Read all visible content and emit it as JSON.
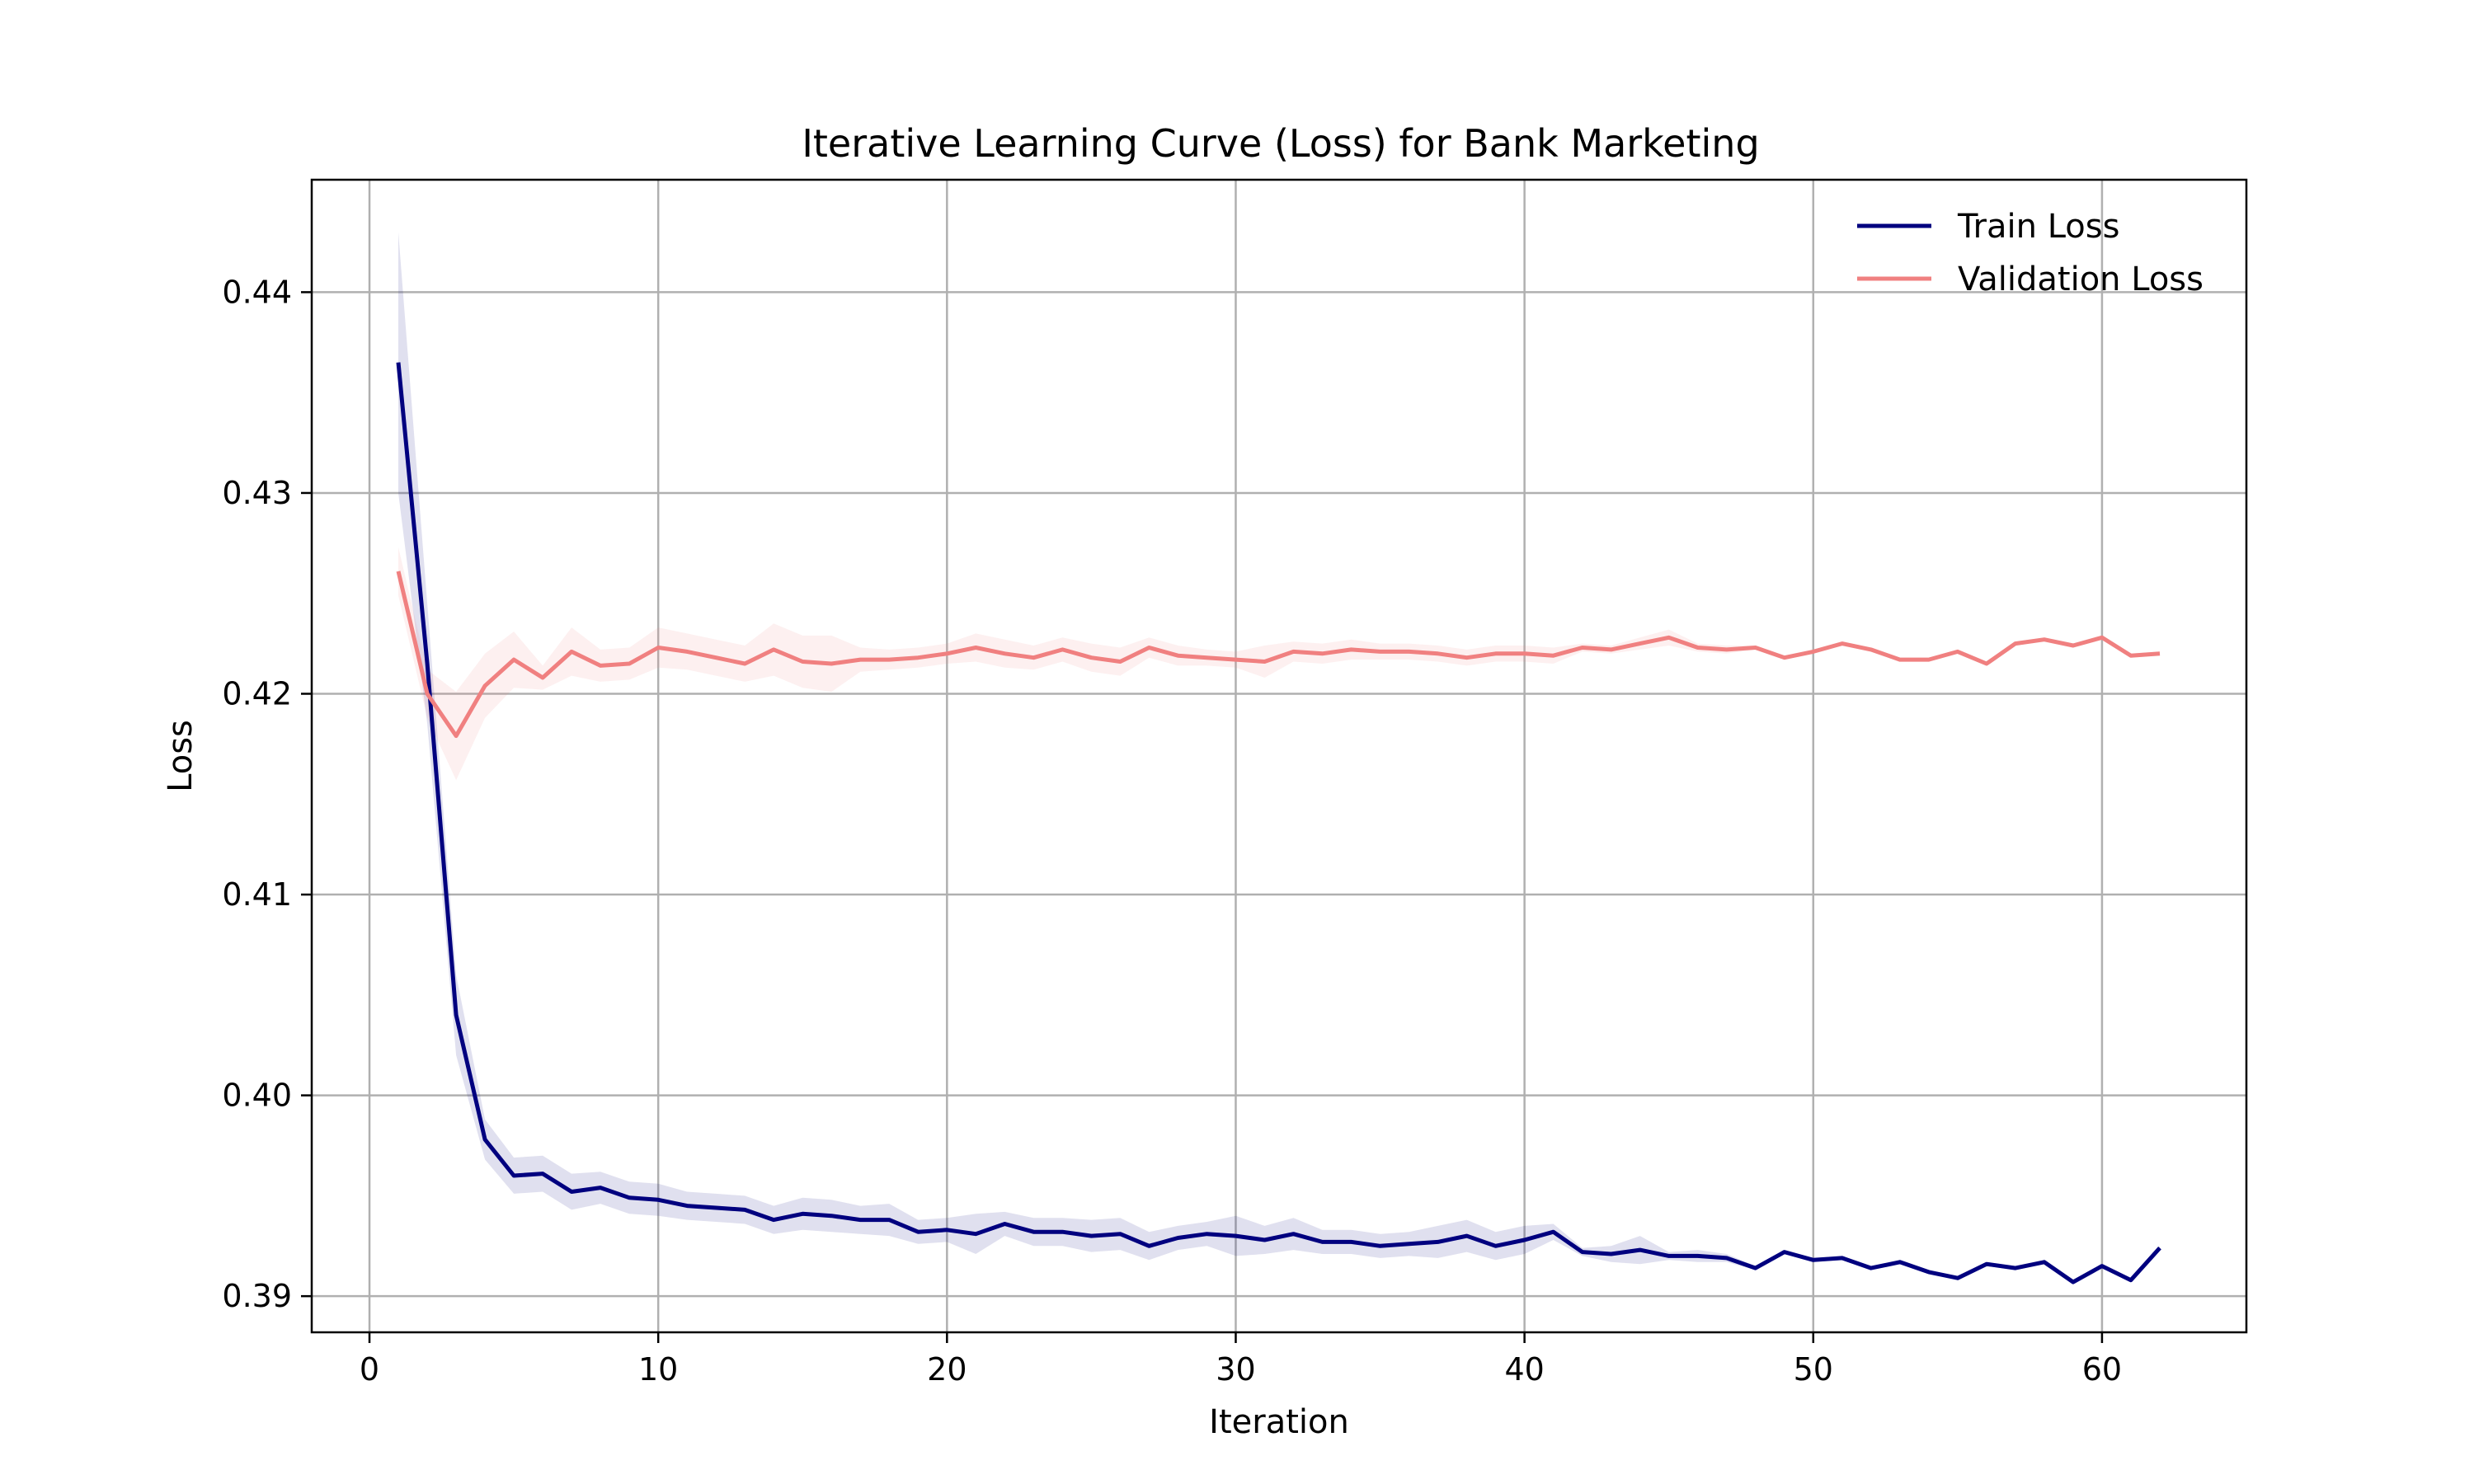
{
  "chart_data": {
    "type": "line",
    "title": "Iterative Learning Curve (Loss) for Bank Marketing",
    "xlabel": "Iteration",
    "ylabel": "Loss",
    "xlim": [
      -2,
      65
    ],
    "ylim": [
      0.3882,
      0.4456
    ],
    "xticks": [
      0,
      10,
      20,
      30,
      40,
      50,
      60
    ],
    "yticks": [
      0.39,
      0.4,
      0.41,
      0.42,
      0.43,
      0.44
    ],
    "ytick_labels": [
      "0.39",
      "0.40",
      "0.41",
      "0.42",
      "0.43",
      "0.44"
    ],
    "grid": true,
    "legend_position": "top-right",
    "x": [
      1,
      2,
      3,
      4,
      5,
      6,
      7,
      8,
      9,
      10,
      11,
      12,
      13,
      14,
      15,
      16,
      17,
      18,
      19,
      20,
      21,
      22,
      23,
      24,
      25,
      26,
      27,
      28,
      29,
      30,
      31,
      32,
      33,
      34,
      35,
      36,
      37,
      38,
      39,
      40,
      41,
      42,
      43,
      44,
      45,
      46,
      47,
      48,
      49,
      50,
      51,
      52,
      53,
      54,
      55,
      56,
      57,
      58,
      59,
      60,
      61,
      62
    ],
    "series": [
      {
        "name": "Train Loss",
        "color": "#00007f",
        "values": [
          0.4365,
          0.4215,
          0.404,
          0.3978,
          0.396,
          0.3961,
          0.3952,
          0.3954,
          0.3949,
          0.3948,
          0.3945,
          0.3944,
          0.3943,
          0.3938,
          0.3941,
          0.394,
          0.3938,
          0.3938,
          0.3932,
          0.3933,
          0.3931,
          0.3936,
          0.3932,
          0.3932,
          0.393,
          0.3931,
          0.3925,
          0.3929,
          0.3931,
          0.393,
          0.3928,
          0.3931,
          0.3927,
          0.3927,
          0.3925,
          0.3926,
          0.3927,
          0.393,
          0.3925,
          0.3928,
          0.3932,
          0.3922,
          0.3921,
          0.3923,
          0.392,
          0.392,
          0.3919,
          0.3914,
          0.3922,
          0.3918,
          0.3919,
          0.3914,
          0.3917,
          0.3912,
          0.3909,
          0.3916,
          0.3914,
          0.3917,
          0.3907,
          0.3915,
          0.3908,
          0.3924
        ],
        "band_half_width": [
          0.0065,
          0.003,
          0.002,
          0.001,
          0.0009,
          0.0009,
          0.0009,
          0.0008,
          0.0008,
          0.0008,
          0.0007,
          0.0007,
          0.0007,
          0.0007,
          0.0008,
          0.0008,
          0.0007,
          0.0008,
          0.0006,
          0.0006,
          0.001,
          0.0006,
          0.0007,
          0.0007,
          0.0008,
          0.0008,
          0.0007,
          0.0006,
          0.0006,
          0.001,
          0.0007,
          0.0008,
          0.0006,
          0.0006,
          0.0006,
          0.0006,
          0.0008,
          0.0008,
          0.0007,
          0.0007,
          0.0004,
          0.0002,
          0.0004,
          0.0007,
          0.0002,
          0.0003,
          0.0002,
          0.0001,
          0.0001,
          0.0001,
          0.0001,
          0.0001,
          0.0001,
          0.0001,
          0.0001,
          0.0001,
          0.0001,
          0.0001,
          0.0001,
          0.0001,
          0.0001,
          0.0001
        ]
      },
      {
        "name": "Validation Loss",
        "color": "#f08080",
        "values": [
          0.4261,
          0.42,
          0.4179,
          0.4204,
          0.4217,
          0.4208,
          0.4221,
          0.4214,
          0.4215,
          0.4223,
          0.4221,
          0.4218,
          0.4215,
          0.4222,
          0.4216,
          0.4215,
          0.4217,
          0.4217,
          0.4218,
          0.422,
          0.4223,
          0.422,
          0.4218,
          0.4222,
          0.4218,
          0.4216,
          0.4223,
          0.4219,
          0.4218,
          0.4217,
          0.4216,
          0.4221,
          0.422,
          0.4222,
          0.4221,
          0.4221,
          0.422,
          0.4218,
          0.422,
          0.422,
          0.4219,
          0.4223,
          0.4222,
          0.4225,
          0.4228,
          0.4223,
          0.4222,
          0.4223,
          0.4218,
          0.4221,
          0.4225,
          0.4222,
          0.4217,
          0.4217,
          0.4221,
          0.4215,
          0.4225,
          0.4227,
          0.4224,
          0.4228,
          0.4219,
          0.422
        ],
        "band_half_width": [
          0.0012,
          0.0012,
          0.0022,
          0.0016,
          0.0014,
          0.0006,
          0.0012,
          0.0008,
          0.0008,
          0.001,
          0.0009,
          0.0009,
          0.0009,
          0.0013,
          0.0013,
          0.0014,
          0.0006,
          0.0005,
          0.0005,
          0.0005,
          0.0007,
          0.0007,
          0.0006,
          0.0006,
          0.0007,
          0.0007,
          0.0005,
          0.0005,
          0.0004,
          0.0004,
          0.0008,
          0.0005,
          0.0005,
          0.0005,
          0.0004,
          0.0004,
          0.0004,
          0.0004,
          0.0004,
          0.0004,
          0.0004,
          0.0002,
          0.0002,
          0.0003,
          0.0004,
          0.0002,
          0.0002,
          0.0001,
          0.0001,
          0.0001,
          0.0001,
          0.0001,
          0.0001,
          0.0001,
          0.0001,
          0.0001,
          0.0001,
          0.0001,
          0.0001,
          0.0001,
          0.0001,
          0.0001
        ]
      }
    ]
  }
}
